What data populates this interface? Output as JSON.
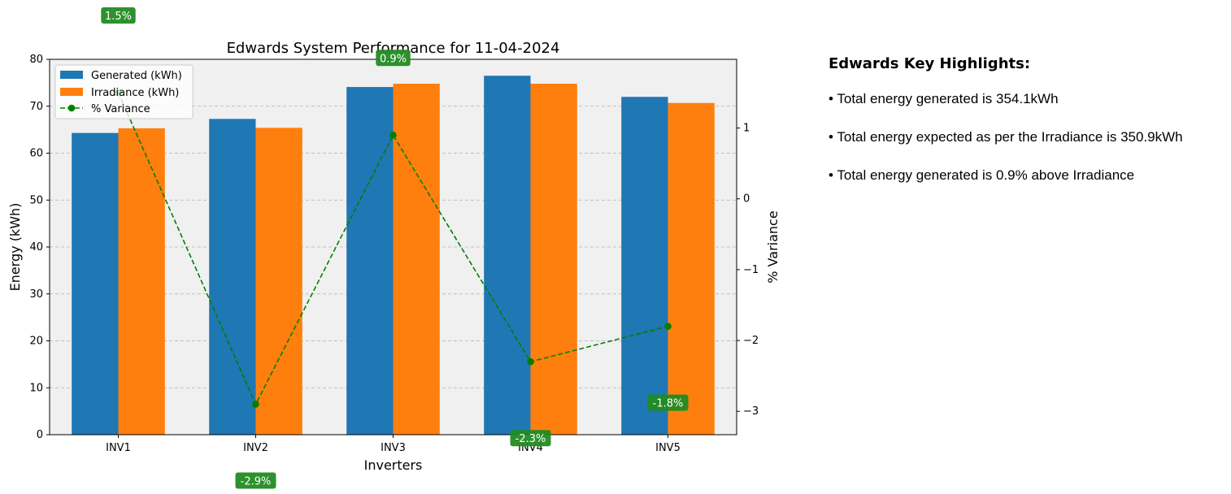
{
  "chart_data": {
    "type": "bar",
    "title": "Edwards System Performance for 11-04-2024",
    "xlabel": "Inverters",
    "ylabel": "Energy (kWh)",
    "y2label": "% Variance",
    "categories": [
      "INV1",
      "INV2",
      "INV3",
      "INV4",
      "INV5"
    ],
    "series": [
      {
        "name": "Generated (kWh)",
        "type": "bar",
        "axis": "left",
        "color": "#1f77b4",
        "values": [
          64.3,
          67.3,
          74.1,
          76.5,
          72.0
        ]
      },
      {
        "name": "Irradiance (kWh)",
        "type": "bar",
        "axis": "left",
        "color": "#ff7f0e",
        "values": [
          65.3,
          65.4,
          74.8,
          74.8,
          70.7
        ]
      },
      {
        "name": "% Variance",
        "type": "line",
        "axis": "right",
        "color": "#008000",
        "style": "dashed",
        "marker": "circle",
        "values": [
          1.5,
          -2.9,
          0.9,
          -2.3,
          -1.8
        ]
      }
    ],
    "data_labels": [
      "1.5%",
      "-2.9%",
      "0.9%",
      "-2.3%",
      "-1.8%"
    ],
    "ylim": [
      0,
      80
    ],
    "yticks": [
      0,
      10,
      20,
      30,
      40,
      50,
      60,
      70,
      80
    ],
    "y2lim": [
      -3.33,
      1.97
    ],
    "y2ticks": [
      "1",
      "0",
      "−1",
      "−2",
      "−3"
    ],
    "grid": "y dashed",
    "legend": "top-left"
  },
  "highlights": {
    "title": "Edwards Key Highlights:",
    "items": [
      "• Total energy generated is 354.1kWh",
      "• Total energy expected as per the Irradiance is 350.9kWh",
      "• Total energy generated is 0.9% above Irradiance"
    ]
  }
}
